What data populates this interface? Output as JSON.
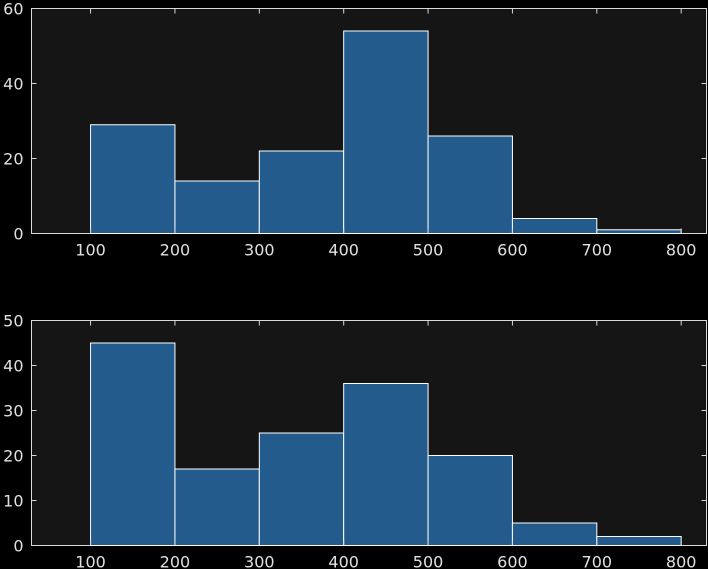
{
  "colors": {
    "figure_background": "#000000",
    "axes_background": "#151515",
    "axes_edge": "#d8d8d8",
    "bar_fill": "#225b8c",
    "bar_edge": "#ffffff",
    "tick_text": "#e0e0e0"
  },
  "chart_data": [
    {
      "type": "bar",
      "histogram": true,
      "bin_edges": [
        100,
        200,
        300,
        400,
        500,
        600,
        700,
        800
      ],
      "values": [
        29,
        14,
        22,
        54,
        26,
        4,
        1
      ],
      "xlim": [
        30,
        830
      ],
      "ylim": [
        0,
        60
      ],
      "xticks": [
        "100",
        "200",
        "300",
        "400",
        "500",
        "600",
        "700",
        "800"
      ],
      "yticks": [
        "0",
        "20",
        "40",
        "60"
      ],
      "grid": false
    },
    {
      "type": "bar",
      "histogram": true,
      "bin_edges": [
        100,
        200,
        300,
        400,
        500,
        600,
        700,
        800
      ],
      "values": [
        45,
        17,
        25,
        36,
        20,
        5,
        2
      ],
      "xlim": [
        30,
        830
      ],
      "ylim": [
        0,
        50
      ],
      "xticks": [
        "100",
        "200",
        "300",
        "400",
        "500",
        "600",
        "700",
        "800"
      ],
      "yticks": [
        "0",
        "10",
        "20",
        "30",
        "40",
        "50"
      ],
      "grid": false
    }
  ]
}
